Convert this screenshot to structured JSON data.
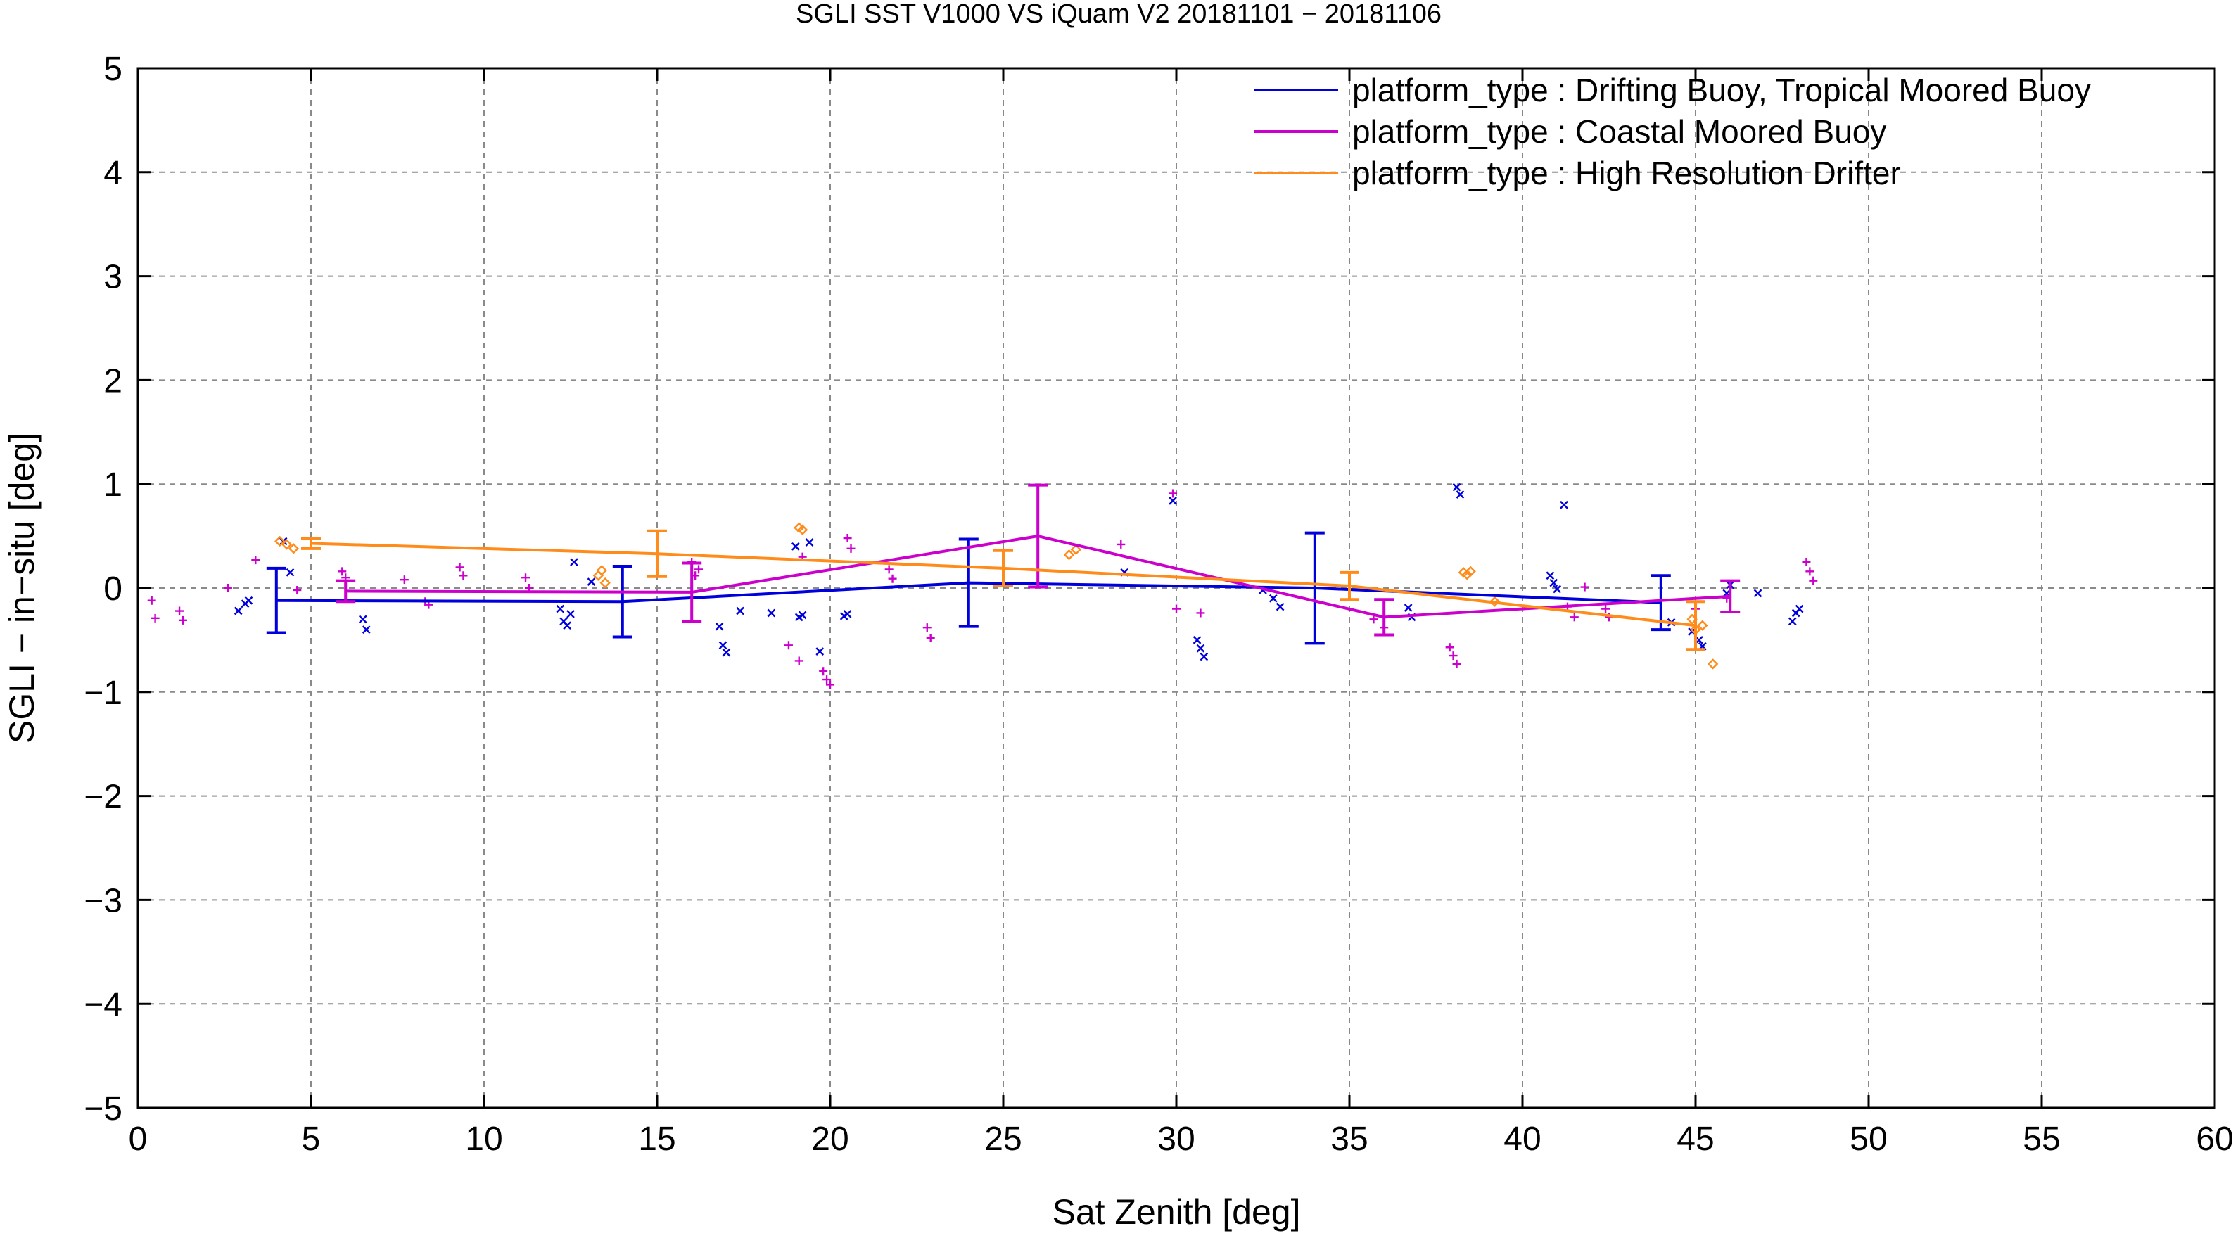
{
  "chart_data": {
    "type": "scatter",
    "title": "SGLI SST V1000 VS iQuam V2 20181101 − 20181106",
    "xlabel": "Sat Zenith [deg]",
    "ylabel": "SGLI − in−situ [deg]",
    "xlim": [
      0,
      60
    ],
    "ylim": [
      -5,
      5
    ],
    "xticks": [
      "0",
      "5",
      "10",
      "15",
      "20",
      "25",
      "30",
      "35",
      "40",
      "45",
      "50",
      "55",
      "60"
    ],
    "yticks": [
      "−5",
      "−4",
      "−3",
      "−2",
      "−1",
      "0",
      "1",
      "2",
      "3",
      "4",
      "5"
    ],
    "grid": true,
    "legend_position": "top-right",
    "series": [
      {
        "name": "platform_type : Drifting Buoy, Tropical Moored Buoy",
        "color": "#0000dd",
        "marker": "x",
        "line": [
          {
            "x": 4,
            "y": -0.12,
            "err": 0.31
          },
          {
            "x": 14,
            "y": -0.13,
            "err": 0.34
          },
          {
            "x": 24,
            "y": 0.05,
            "err": 0.42
          },
          {
            "x": 34,
            "y": 0.0,
            "err": 0.53
          },
          {
            "x": 44,
            "y": -0.14,
            "err": 0.26
          }
        ],
        "points": [
          [
            2.9,
            -0.22
          ],
          [
            3.1,
            -0.15
          ],
          [
            3.2,
            -0.12
          ],
          [
            4.2,
            0.45
          ],
          [
            4.4,
            0.15
          ],
          [
            6.5,
            -0.3
          ],
          [
            6.6,
            -0.4
          ],
          [
            12.2,
            -0.2
          ],
          [
            12.3,
            -0.32
          ],
          [
            12.4,
            -0.36
          ],
          [
            12.5,
            -0.25
          ],
          [
            12.6,
            0.25
          ],
          [
            13.1,
            0.06
          ],
          [
            16.8,
            -0.37
          ],
          [
            16.9,
            -0.55
          ],
          [
            17.0,
            -0.62
          ],
          [
            17.4,
            -0.22
          ],
          [
            18.3,
            -0.24
          ],
          [
            19.0,
            0.4
          ],
          [
            19.1,
            -0.28
          ],
          [
            19.2,
            -0.26
          ],
          [
            19.4,
            0.44
          ],
          [
            19.7,
            -0.61
          ],
          [
            20.4,
            -0.27
          ],
          [
            20.5,
            -0.25
          ],
          [
            28.5,
            0.15
          ],
          [
            29.9,
            0.84
          ],
          [
            30.6,
            -0.5
          ],
          [
            30.7,
            -0.58
          ],
          [
            30.8,
            -0.66
          ],
          [
            32.5,
            -0.02
          ],
          [
            32.8,
            -0.1
          ],
          [
            33.0,
            -0.18
          ],
          [
            36.7,
            -0.19
          ],
          [
            36.8,
            -0.28
          ],
          [
            38.1,
            0.97
          ],
          [
            38.2,
            0.9
          ],
          [
            40.8,
            0.12
          ],
          [
            40.9,
            0.05
          ],
          [
            41.0,
            -0.01
          ],
          [
            41.2,
            0.8
          ],
          [
            44.3,
            -0.33
          ],
          [
            44.9,
            -0.42
          ],
          [
            45.1,
            -0.5
          ],
          [
            45.2,
            -0.56
          ],
          [
            45.9,
            -0.05
          ],
          [
            46.0,
            0.03
          ],
          [
            46.8,
            -0.05
          ],
          [
            47.8,
            -0.32
          ],
          [
            47.9,
            -0.24
          ],
          [
            48.0,
            -0.2
          ]
        ]
      },
      {
        "name": "platform_type : Coastal Moored Buoy",
        "color": "#cc00cc",
        "marker": "+",
        "line": [
          {
            "x": 6,
            "y": -0.03,
            "err": 0.1
          },
          {
            "x": 16,
            "y": -0.04,
            "err": 0.28
          },
          {
            "x": 26,
            "y": 0.5,
            "err": 0.49
          },
          {
            "x": 36,
            "y": -0.28,
            "err": 0.17
          },
          {
            "x": 46,
            "y": -0.08,
            "err": 0.15
          }
        ],
        "points": [
          [
            0.4,
            -0.12
          ],
          [
            0.5,
            -0.29
          ],
          [
            1.2,
            -0.22
          ],
          [
            1.3,
            -0.31
          ],
          [
            2.6,
            -0.0
          ],
          [
            3.4,
            0.27
          ],
          [
            4.6,
            -0.02
          ],
          [
            5.9,
            0.16
          ],
          [
            6.0,
            0.1
          ],
          [
            7.7,
            0.08
          ],
          [
            8.3,
            -0.13
          ],
          [
            8.4,
            -0.16
          ],
          [
            9.3,
            0.2
          ],
          [
            9.4,
            0.12
          ],
          [
            11.2,
            0.1
          ],
          [
            11.3,
            0.0
          ],
          [
            16.0,
            0.25
          ],
          [
            16.1,
            0.12
          ],
          [
            16.2,
            0.18
          ],
          [
            18.8,
            -0.55
          ],
          [
            19.1,
            -0.7
          ],
          [
            19.2,
            0.3
          ],
          [
            19.8,
            -0.8
          ],
          [
            19.9,
            -0.88
          ],
          [
            20.0,
            -0.93
          ],
          [
            20.5,
            0.48
          ],
          [
            20.6,
            0.38
          ],
          [
            21.7,
            0.18
          ],
          [
            21.8,
            0.09
          ],
          [
            22.8,
            -0.38
          ],
          [
            22.9,
            -0.48
          ],
          [
            28.4,
            0.42
          ],
          [
            29.9,
            0.91
          ],
          [
            30.0,
            -0.2
          ],
          [
            30.7,
            -0.24
          ],
          [
            35.7,
            -0.3
          ],
          [
            36.0,
            -0.38
          ],
          [
            37.9,
            -0.57
          ],
          [
            38.0,
            -0.65
          ],
          [
            38.1,
            -0.73
          ],
          [
            41.3,
            -0.18
          ],
          [
            41.5,
            -0.28
          ],
          [
            41.8,
            0.01
          ],
          [
            42.4,
            -0.2
          ],
          [
            42.5,
            -0.28
          ],
          [
            45.0,
            -0.2
          ],
          [
            45.9,
            -0.1
          ],
          [
            48.2,
            0.25
          ],
          [
            48.3,
            0.16
          ],
          [
            48.4,
            0.07
          ]
        ]
      },
      {
        "name": "platform_type : High Resolution Drifter",
        "color": "#ff8c1a",
        "marker": "diamond",
        "line": [
          {
            "x": 5,
            "y": 0.43,
            "err": 0.05
          },
          {
            "x": 15,
            "y": 0.33,
            "err": 0.22
          },
          {
            "x": 25,
            "y": 0.19,
            "err": 0.17
          },
          {
            "x": 35,
            "y": 0.02,
            "err": 0.13
          },
          {
            "x": 45,
            "y": -0.36,
            "err": 0.23
          }
        ],
        "points": [
          [
            4.1,
            0.45
          ],
          [
            4.3,
            0.42
          ],
          [
            4.5,
            0.38
          ],
          [
            13.3,
            0.12
          ],
          [
            13.4,
            0.17
          ],
          [
            13.5,
            0.05
          ],
          [
            19.1,
            0.58
          ],
          [
            19.2,
            0.56
          ],
          [
            26.9,
            0.32
          ],
          [
            27.1,
            0.37
          ],
          [
            38.3,
            0.15
          ],
          [
            38.4,
            0.13
          ],
          [
            38.5,
            0.16
          ],
          [
            39.2,
            -0.13
          ],
          [
            44.9,
            -0.3
          ],
          [
            45.0,
            -0.4
          ],
          [
            45.2,
            -0.36
          ],
          [
            45.5,
            -0.73
          ]
        ]
      }
    ]
  }
}
